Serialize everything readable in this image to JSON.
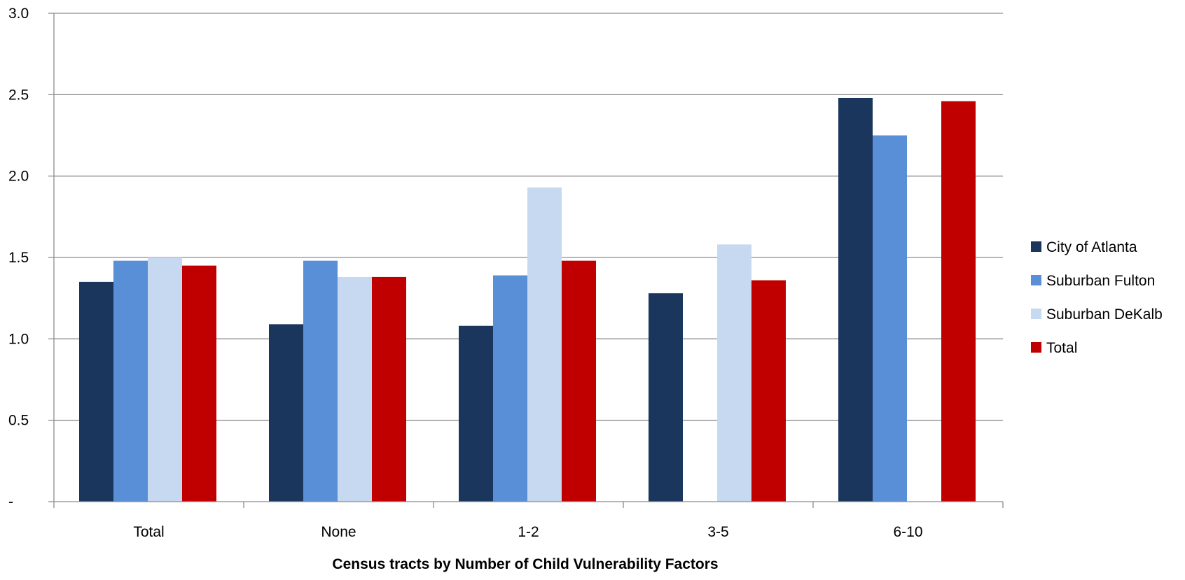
{
  "chart_data": {
    "type": "bar",
    "title": "",
    "xlabel": "Census tracts by Number of Child Vulnerability Factors",
    "ylabel": "",
    "ylim": [
      0,
      3.0
    ],
    "yticks": [
      {
        "value": 0,
        "label": "-"
      },
      {
        "value": 0.5,
        "label": "0.5"
      },
      {
        "value": 1.0,
        "label": "1.0"
      },
      {
        "value": 1.5,
        "label": "1.5"
      },
      {
        "value": 2.0,
        "label": "2.0"
      },
      {
        "value": 2.5,
        "label": "2.5"
      },
      {
        "value": 3.0,
        "label": "3.0"
      }
    ],
    "grid": true,
    "legend_position": "right",
    "categories": [
      "Total",
      "None",
      "1-2",
      "3-5",
      "6-10"
    ],
    "series": [
      {
        "name": "City of Atlanta",
        "color": "#1b365d",
        "values": [
          1.35,
          1.09,
          1.08,
          1.28,
          2.48
        ]
      },
      {
        "name": "Suburban Fulton",
        "color": "#588fd6",
        "values": [
          1.48,
          1.48,
          1.39,
          null,
          2.25
        ]
      },
      {
        "name": "Suburban DeKalb",
        "color": "#c6d9f1",
        "values": [
          1.5,
          1.38,
          1.93,
          1.58,
          null
        ]
      },
      {
        "name": "Total",
        "color": "#c00000",
        "values": [
          1.45,
          1.38,
          1.48,
          1.36,
          2.46
        ]
      }
    ]
  }
}
